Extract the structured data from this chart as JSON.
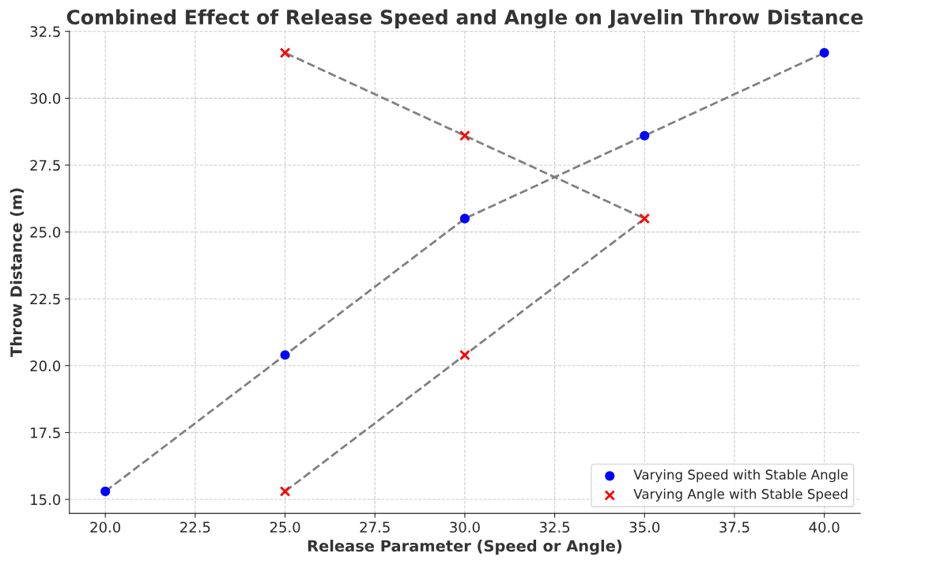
{
  "chart_data": {
    "type": "scatter",
    "title": "Combined Effect of Release Speed and Angle on Javelin Throw Distance",
    "xlabel": "Release Parameter (Speed or Angle)",
    "ylabel": "Throw Distance (m)",
    "series": [
      {
        "name": "Varying Speed with Stable Angle",
        "marker": "circle",
        "color": "#0000ff",
        "x": [
          20,
          25,
          30,
          35,
          40
        ],
        "values": [
          15.3,
          20.4,
          25.5,
          28.6,
          31.7
        ]
      },
      {
        "name": "Varying Angle with Stable Speed",
        "marker": "cross",
        "color": "#ff0000",
        "x": [
          25,
          30,
          35,
          30,
          25
        ],
        "values": [
          15.3,
          20.4,
          25.5,
          28.6,
          31.7
        ]
      },
      {
        "type": "line",
        "marker": "none",
        "line_style": "dashed",
        "color": "#808080",
        "x": [
          20,
          25,
          30,
          35,
          40
        ],
        "values": [
          15.3,
          20.4,
          25.5,
          28.6,
          31.7
        ]
      },
      {
        "type": "line",
        "marker": "none",
        "line_style": "dashed",
        "color": "#808080",
        "x": [
          25,
          30,
          35,
          30,
          25
        ],
        "values": [
          15.3,
          20.4,
          25.5,
          28.6,
          31.7
        ]
      }
    ],
    "xlim": [
      19,
      41
    ],
    "ylim": [
      14.48,
      32.52
    ],
    "xticks": [
      {
        "value": 20,
        "label": "20.0"
      },
      {
        "value": 22.5,
        "label": "22.5"
      },
      {
        "value": 25,
        "label": "25.0"
      },
      {
        "value": 27.5,
        "label": "27.5"
      },
      {
        "value": 30,
        "label": "30.0"
      },
      {
        "value": 32.5,
        "label": "32.5"
      },
      {
        "value": 35,
        "label": "35.0"
      },
      {
        "value": 37.5,
        "label": "37.5"
      },
      {
        "value": 40,
        "label": "40.0"
      }
    ],
    "yticks": [
      {
        "value": 15,
        "label": "15.0"
      },
      {
        "value": 17.5,
        "label": "17.5"
      },
      {
        "value": 20,
        "label": "20.0"
      },
      {
        "value": 22.5,
        "label": "22.5"
      },
      {
        "value": 25,
        "label": "25.0"
      },
      {
        "value": 27.5,
        "label": "27.5"
      },
      {
        "value": 30,
        "label": "30.0"
      },
      {
        "value": 32.5,
        "label": "32.5"
      }
    ],
    "grid": true,
    "legend": "bottom right"
  }
}
